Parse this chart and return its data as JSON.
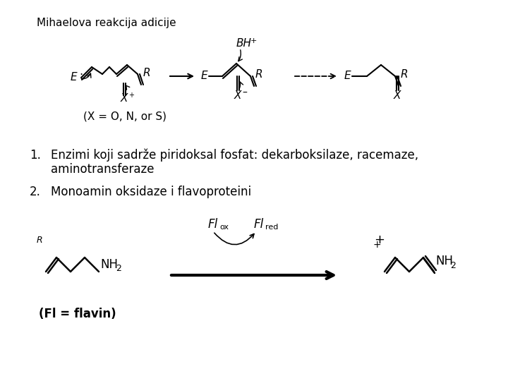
{
  "bg": "#ffffff",
  "title": "Mihaelova reakcija adicije",
  "item1a": "Enzimi koji sadrže piridoksal fosfat: dekarboksilaze, racemaze,",
  "item1b": "aminotransferaze",
  "item2": "Monoamin oksidaze i flavoproteini",
  "flavin_label": "(Fl = flavin)",
  "xeq": "(X = O, N, or S)"
}
